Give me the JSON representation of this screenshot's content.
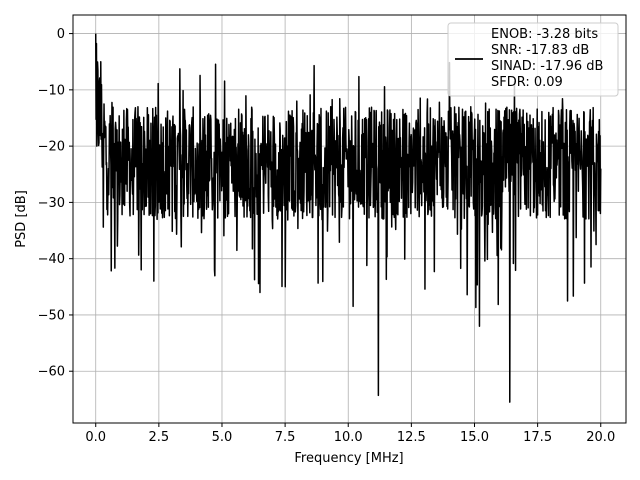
{
  "chart_data": {
    "type": "line",
    "title": "",
    "xlabel": "Frequency [MHz]",
    "ylabel": "PSD [dB]",
    "xlim": [
      -0.9,
      21.0
    ],
    "ylim": [
      -69.2,
      3.3
    ],
    "xticks": [
      0.0,
      2.5,
      5.0,
      7.5,
      10.0,
      12.5,
      15.0,
      17.5,
      20.0
    ],
    "xtick_labels": [
      "0.0",
      "2.5",
      "5.0",
      "7.5",
      "10.0",
      "12.5",
      "15.0",
      "17.5",
      "20.0"
    ],
    "yticks": [
      0,
      -10,
      -20,
      -30,
      -40,
      -50,
      -60
    ],
    "ytick_labels": [
      "0",
      "−10",
      "−20",
      "−30",
      "−40",
      "−50",
      "−60"
    ],
    "grid": true,
    "legend": {
      "placement": "top-right",
      "entries": [
        "ENOB: -3.28 bits",
        "SNR: -17.83 dB",
        "SINAD: -17.96 dB",
        "SFDR: 0.09"
      ]
    },
    "series": [
      {
        "color": "#000000",
        "x_range": [
          0.0,
          20.0
        ],
        "description_points": [
          {
            "x": 0.0,
            "y": 0.0
          },
          {
            "x": 0.05,
            "y": -20
          },
          {
            "x": 0.2,
            "y": -5
          },
          {
            "x": 0.5,
            "y": -24
          },
          {
            "x": 1.8,
            "y": -42
          },
          {
            "x": 2.3,
            "y": -44
          },
          {
            "x": 4.7,
            "y": -42
          },
          {
            "x": 6.5,
            "y": -46
          },
          {
            "x": 7.5,
            "y": -45
          },
          {
            "x": 11.2,
            "y": -64.3
          },
          {
            "x": 15.2,
            "y": -52
          },
          {
            "x": 16.4,
            "y": -65.5
          },
          {
            "x": 20.0,
            "y": -24
          }
        ],
        "noise_floor_mean": -23,
        "noise_band_top": -13,
        "noise_band_bottom": -33
      }
    ]
  }
}
